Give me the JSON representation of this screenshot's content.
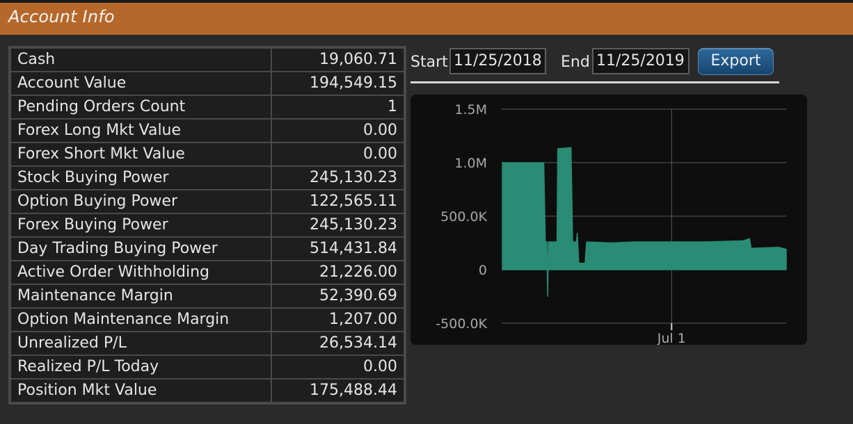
{
  "window": {
    "title": "Account Info"
  },
  "account": {
    "rows": [
      {
        "label": "Cash",
        "value": "19,060.71"
      },
      {
        "label": "Account Value",
        "value": "194,549.15"
      },
      {
        "label": "Pending Orders Count",
        "value": "1"
      },
      {
        "label": "Forex Long Mkt Value",
        "value": "0.00"
      },
      {
        "label": "Forex Short Mkt Value",
        "value": "0.00"
      },
      {
        "label": "Stock Buying Power",
        "value": "245,130.23"
      },
      {
        "label": "Option Buying Power",
        "value": "122,565.11"
      },
      {
        "label": "Forex Buying Power",
        "value": "245,130.23"
      },
      {
        "label": "Day Trading Buying Power",
        "value": "514,431.84"
      },
      {
        "label": "Active Order Withholding",
        "value": "21,226.00"
      },
      {
        "label": "Maintenance Margin",
        "value": "52,390.69"
      },
      {
        "label": "Option Maintenance Margin",
        "value": "1,207.00"
      },
      {
        "label": "Unrealized P/L",
        "value": "26,534.14"
      },
      {
        "label": "Realized P/L Today",
        "value": "0.00"
      },
      {
        "label": "Position Mkt Value",
        "value": "175,488.44"
      }
    ]
  },
  "controls": {
    "start_label": "Start",
    "start_value": "11/25/2018",
    "end_label": "End",
    "end_value": "11/25/2019",
    "export_label": "Export"
  },
  "colors": {
    "title_bar": "#b5682a",
    "area_fill": "#2a8c74",
    "export_button": "#1f5a8a"
  },
  "chart_data": {
    "type": "area",
    "title": "",
    "xlabel": "",
    "ylabel": "",
    "ylim": [
      -500000,
      1500000
    ],
    "y_ticks": [
      1500000,
      1000000,
      500000,
      0,
      -500000
    ],
    "y_tick_labels": [
      "1.5M",
      "1.0M",
      "500.0K",
      "0",
      "-500.0K"
    ],
    "x_ticks": [
      {
        "date": "2019-07-01",
        "label": "Jul 1"
      }
    ],
    "x_range": [
      "2018-11-25",
      "2019-11-25"
    ],
    "grid": true,
    "series": [
      {
        "values": [
          {
            "date": "2018-11-26",
            "value": 1000000
          },
          {
            "date": "2019-01-18",
            "value": 1000000
          },
          {
            "date": "2019-01-20",
            "value": 260000
          },
          {
            "date": "2019-01-22",
            "value": 260000
          },
          {
            "date": "2019-01-23",
            "value": -250000
          },
          {
            "date": "2019-01-24",
            "value": 260000
          },
          {
            "date": "2019-02-04",
            "value": 260000
          },
          {
            "date": "2019-02-05",
            "value": 1130000
          },
          {
            "date": "2019-02-22",
            "value": 1140000
          },
          {
            "date": "2019-02-24",
            "value": 260000
          },
          {
            "date": "2019-03-01",
            "value": 260000
          },
          {
            "date": "2019-03-02",
            "value": 340000
          },
          {
            "date": "2019-03-04",
            "value": 60000
          },
          {
            "date": "2019-03-12",
            "value": 60000
          },
          {
            "date": "2019-03-14",
            "value": 260000
          },
          {
            "date": "2019-04-15",
            "value": 250000
          },
          {
            "date": "2019-05-15",
            "value": 260000
          },
          {
            "date": "2019-07-01",
            "value": 260000
          },
          {
            "date": "2019-08-15",
            "value": 260000
          },
          {
            "date": "2019-10-01",
            "value": 270000
          },
          {
            "date": "2019-10-09",
            "value": 290000
          },
          {
            "date": "2019-10-11",
            "value": 200000
          },
          {
            "date": "2019-11-15",
            "value": 210000
          },
          {
            "date": "2019-11-25",
            "value": 190000
          }
        ]
      }
    ]
  }
}
